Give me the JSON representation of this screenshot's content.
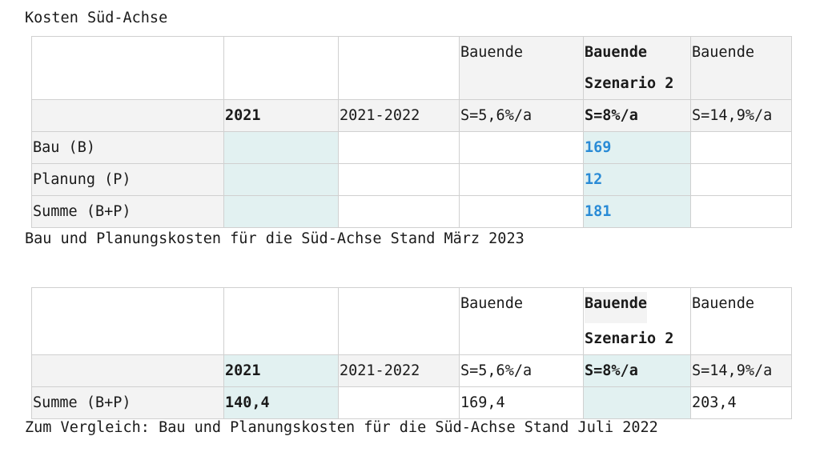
{
  "title": "Kosten Süd-Achse",
  "table1": {
    "header_row1": [
      "",
      "",
      "",
      "Bauende",
      "Bauende|Szenario 2",
      "Bauende"
    ],
    "header_row2": [
      "",
      "2021",
      "2021-2022",
      "S=5,6%/a",
      "S=8%/a",
      "S=14,9%/a"
    ],
    "rows": [
      {
        "label": "Bau (B)",
        "c2021": "",
        "c2021_2022": "",
        "s56": "",
        "s8": "169",
        "s149": ""
      },
      {
        "label": "Planung (P)",
        "c2021": "",
        "c2021_2022": "",
        "s56": "",
        "s8": "12",
        "s149": ""
      },
      {
        "label": "Summe (B+P)",
        "c2021": "",
        "c2021_2022": "",
        "s56": "",
        "s8": "181",
        "s149": ""
      }
    ]
  },
  "caption1": "Bau und Planungskosten für die Süd-Achse Stand März 2023",
  "table2": {
    "header_row1": [
      "",
      "",
      "",
      "Bauende",
      "Bauende|Szenario 2",
      "Bauende"
    ],
    "header_row2": [
      "",
      "2021",
      "2021-2022",
      "S=5,6%/a",
      "S=8%/a",
      "S=14,9%/a"
    ],
    "rows": [
      {
        "label": "Summe (B+P)",
        "c2021": "140,4",
        "c2021_2022": "",
        "s56": "169,4",
        "s8": "",
        "s149": "203,4"
      }
    ]
  },
  "caption2": "Zum Vergleich: Bau und Planungskosten für die Süd-Achse Stand Juli 2022",
  "colors": {
    "header_bg": "#f3f3f3",
    "highlight_bg": "#e2f1f1",
    "value_blue": "#2a8bd6",
    "border": "#d0d0d0"
  }
}
